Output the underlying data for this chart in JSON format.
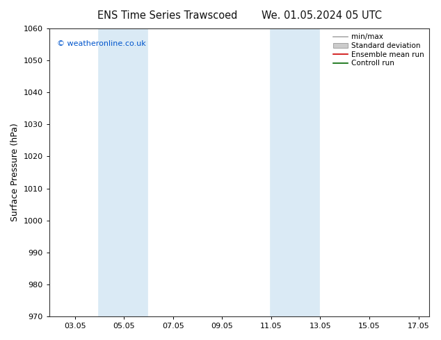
{
  "title_left": "ENS Time Series Trawscoed",
  "title_right": "We. 01.05.2024 05 UTC",
  "ylabel": "Surface Pressure (hPa)",
  "ylim": [
    970,
    1060
  ],
  "yticks": [
    970,
    980,
    990,
    1000,
    1010,
    1020,
    1030,
    1040,
    1050,
    1060
  ],
  "xlim": [
    2.0,
    17.5
  ],
  "xticks": [
    3.05,
    5.05,
    7.05,
    9.05,
    11.05,
    13.05,
    15.05,
    17.05
  ],
  "xticklabels": [
    "03.05",
    "05.05",
    "07.05",
    "09.05",
    "11.05",
    "13.05",
    "15.05",
    "17.05"
  ],
  "shaded_bands": [
    {
      "xmin": 4.0,
      "xmax": 5.0
    },
    {
      "xmin": 5.0,
      "xmax": 6.0
    },
    {
      "xmin": 11.0,
      "xmax": 12.0
    },
    {
      "xmin": 12.0,
      "xmax": 13.0
    }
  ],
  "shade_color": "#daeaf5",
  "shade_border_color": "#c5ddef",
  "copyright_text": "© weatheronline.co.uk",
  "copyright_color": "#0055cc",
  "legend_items": [
    {
      "label": "min/max",
      "color": "#aaaaaa",
      "lw": 1.2,
      "ls": "-",
      "type": "line"
    },
    {
      "label": "Standard deviation",
      "color": "#cccccc",
      "lw": 7,
      "ls": "-",
      "type": "patch"
    },
    {
      "label": "Ensemble mean run",
      "color": "#cc0000",
      "lw": 1.2,
      "ls": "-",
      "type": "line"
    },
    {
      "label": "Controll run",
      "color": "#006600",
      "lw": 1.2,
      "ls": "-",
      "type": "line"
    }
  ],
  "bg_color": "#ffffff",
  "plot_bg_color": "#ffffff",
  "title_fontsize": 10.5,
  "ylabel_fontsize": 9,
  "tick_fontsize": 8,
  "legend_fontsize": 7.5,
  "copyright_fontsize": 8,
  "figsize": [
    6.34,
    4.9
  ],
  "dpi": 100
}
